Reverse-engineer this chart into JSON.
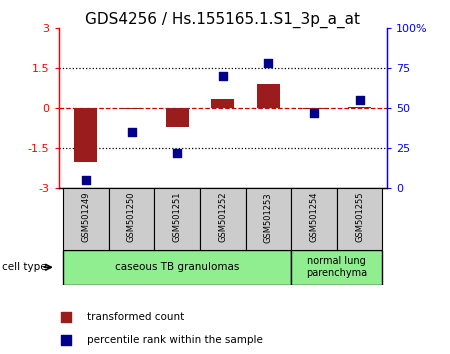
{
  "title": "GDS4256 / Hs.155165.1.S1_3p_a_at",
  "samples": [
    "GSM501249",
    "GSM501250",
    "GSM501251",
    "GSM501252",
    "GSM501253",
    "GSM501254",
    "GSM501255"
  ],
  "transformed_count": [
    -2.05,
    -0.05,
    -0.72,
    0.35,
    0.9,
    -0.05,
    0.05
  ],
  "percentile_rank": [
    5,
    35,
    22,
    70,
    78,
    47,
    55
  ],
  "ylim_left": [
    -3,
    3
  ],
  "ylim_right": [
    0,
    100
  ],
  "yticks_left": [
    -3,
    -1.5,
    0,
    1.5,
    3
  ],
  "yticks_right": [
    0,
    25,
    50,
    75,
    100
  ],
  "ytick_labels_right": [
    "0",
    "25",
    "50",
    "75",
    "100%"
  ],
  "bar_color": "#9B1C1C",
  "dot_color": "#00008B",
  "bar_width": 0.5,
  "dot_size": 40,
  "cell_type_label": "cell type",
  "legend_red_label": "transformed count",
  "legend_blue_label": "percentile rank within the sample",
  "plot_bg_color": "#ffffff",
  "dashed_zero_color": "#cc0000",
  "dotted_line_color": "#000000",
  "sample_box_color": "#cccccc",
  "ct_group1_color": "#90EE90",
  "ct_group2_color": "#90EE90",
  "title_fontsize": 11,
  "tick_fontsize": 8,
  "sample_fontsize": 6,
  "legend_fontsize": 7.5,
  "ct_fontsize": 7.5
}
